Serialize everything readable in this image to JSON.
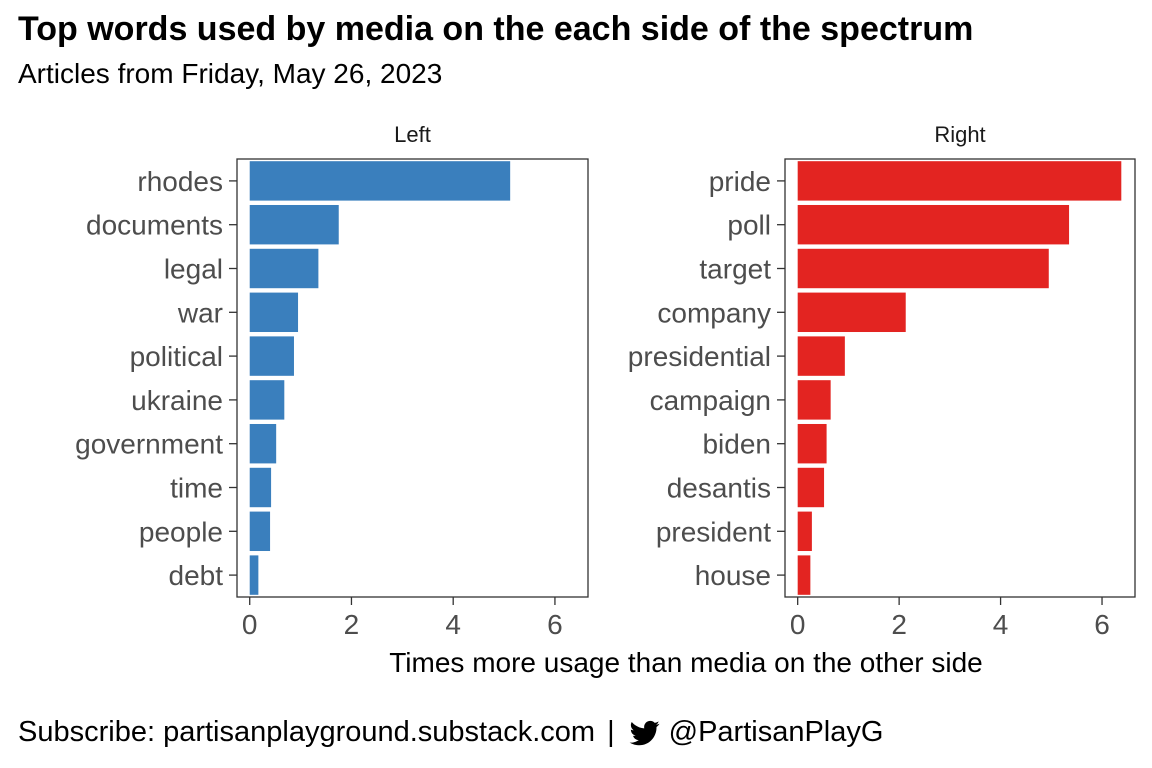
{
  "title": "Top words used by media on the each side of the spectrum",
  "subtitle": "Articles from Friday, May 26, 2023",
  "footer": {
    "subscribe": "Subscribe: partisanplayground.substack.com",
    "separator": "|",
    "icon": "twitter-bird-icon",
    "handle": "@PartisanPlayG"
  },
  "chart_data": {
    "type": "bar",
    "orientation": "horizontal",
    "xlabel": "Times more usage than media on the other side",
    "xlim": [
      -0.25,
      6.65
    ],
    "xticks": [
      0,
      2,
      4,
      6
    ],
    "grid": false,
    "panels": [
      {
        "name": "Left",
        "color": "#3A7FBD",
        "categories": [
          "rhodes",
          "documents",
          "legal",
          "war",
          "political",
          "ukraine",
          "government",
          "time",
          "people",
          "debt"
        ],
        "values": [
          5.12,
          1.75,
          1.35,
          0.95,
          0.87,
          0.68,
          0.52,
          0.42,
          0.4,
          0.17
        ]
      },
      {
        "name": "Right",
        "color": "#E32421",
        "categories": [
          "pride",
          "poll",
          "target",
          "company",
          "presidential",
          "campaign",
          "biden",
          "desantis",
          "president",
          "house"
        ],
        "values": [
          6.38,
          5.35,
          4.95,
          2.13,
          0.93,
          0.65,
          0.57,
          0.52,
          0.28,
          0.25
        ]
      }
    ]
  }
}
